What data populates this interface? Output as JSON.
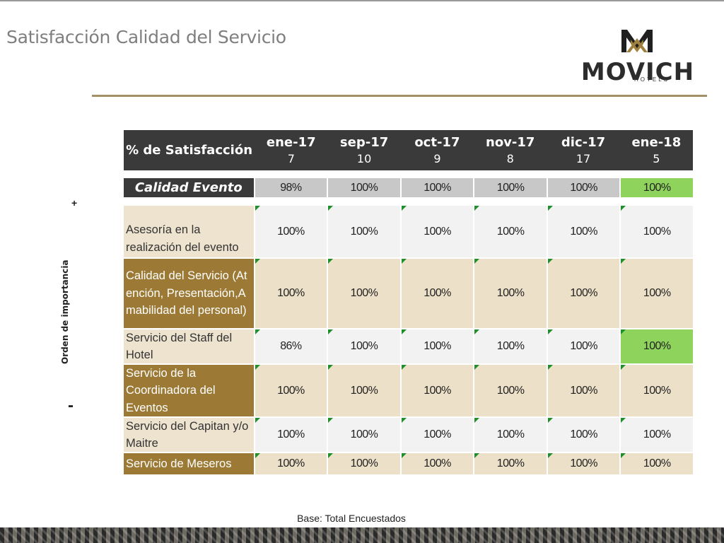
{
  "title": "Satisfacción Calidad del Servicio",
  "logo": {
    "name": "MOVICH",
    "tagline": "HOTELS"
  },
  "side_axis": {
    "label": "Orden de importancia",
    "top": "+",
    "bottom": "-"
  },
  "table": {
    "header_label": "% de Satisfacción",
    "columns": [
      {
        "month": "ene-17",
        "n": "7"
      },
      {
        "month": "sep-17",
        "n": "10"
      },
      {
        "month": "oct-17",
        "n": "9"
      },
      {
        "month": "nov-17",
        "n": "8"
      },
      {
        "month": "dic-17",
        "n": "17"
      },
      {
        "month": "ene-18",
        "n": "5"
      }
    ],
    "summary": {
      "label": "Calidad Evento",
      "values": [
        "98%",
        "100%",
        "100%",
        "100%",
        "100%",
        "100%"
      ]
    },
    "rows": [
      {
        "label": "Asesoría en la realización del evento",
        "values": [
          "100%",
          "100%",
          "100%",
          "100%",
          "100%",
          "100%"
        ]
      },
      {
        "label": "Calidad del Servicio (Atención, Presentación,Amabilidad del personal)",
        "values": [
          "100%",
          "100%",
          "100%",
          "100%",
          "100%",
          "100%"
        ]
      },
      {
        "label": "Servicio del Staff del Hotel",
        "values": [
          "86%",
          "100%",
          "100%",
          "100%",
          "100%",
          "100%"
        ]
      },
      {
        "label": "Servicio de la Coordinadora del Eventos",
        "values": [
          "100%",
          "100%",
          "100%",
          "100%",
          "100%",
          "100%"
        ]
      },
      {
        "label": "Servicio del Capitan y/o Maitre",
        "values": [
          "100%",
          "100%",
          "100%",
          "100%",
          "100%",
          "100%"
        ]
      },
      {
        "label": "Servicio de Meseros",
        "values": [
          "100%",
          "100%",
          "100%",
          "100%",
          "100%",
          "100%"
        ]
      }
    ]
  },
  "colors": {
    "header_bg": "#3a3a3a",
    "accent_gold": "#9c7a35",
    "highlight_green": "#8ed35b",
    "comment_marker": "#1f8f2a"
  },
  "footnote": "Base: Total Encuestados"
}
